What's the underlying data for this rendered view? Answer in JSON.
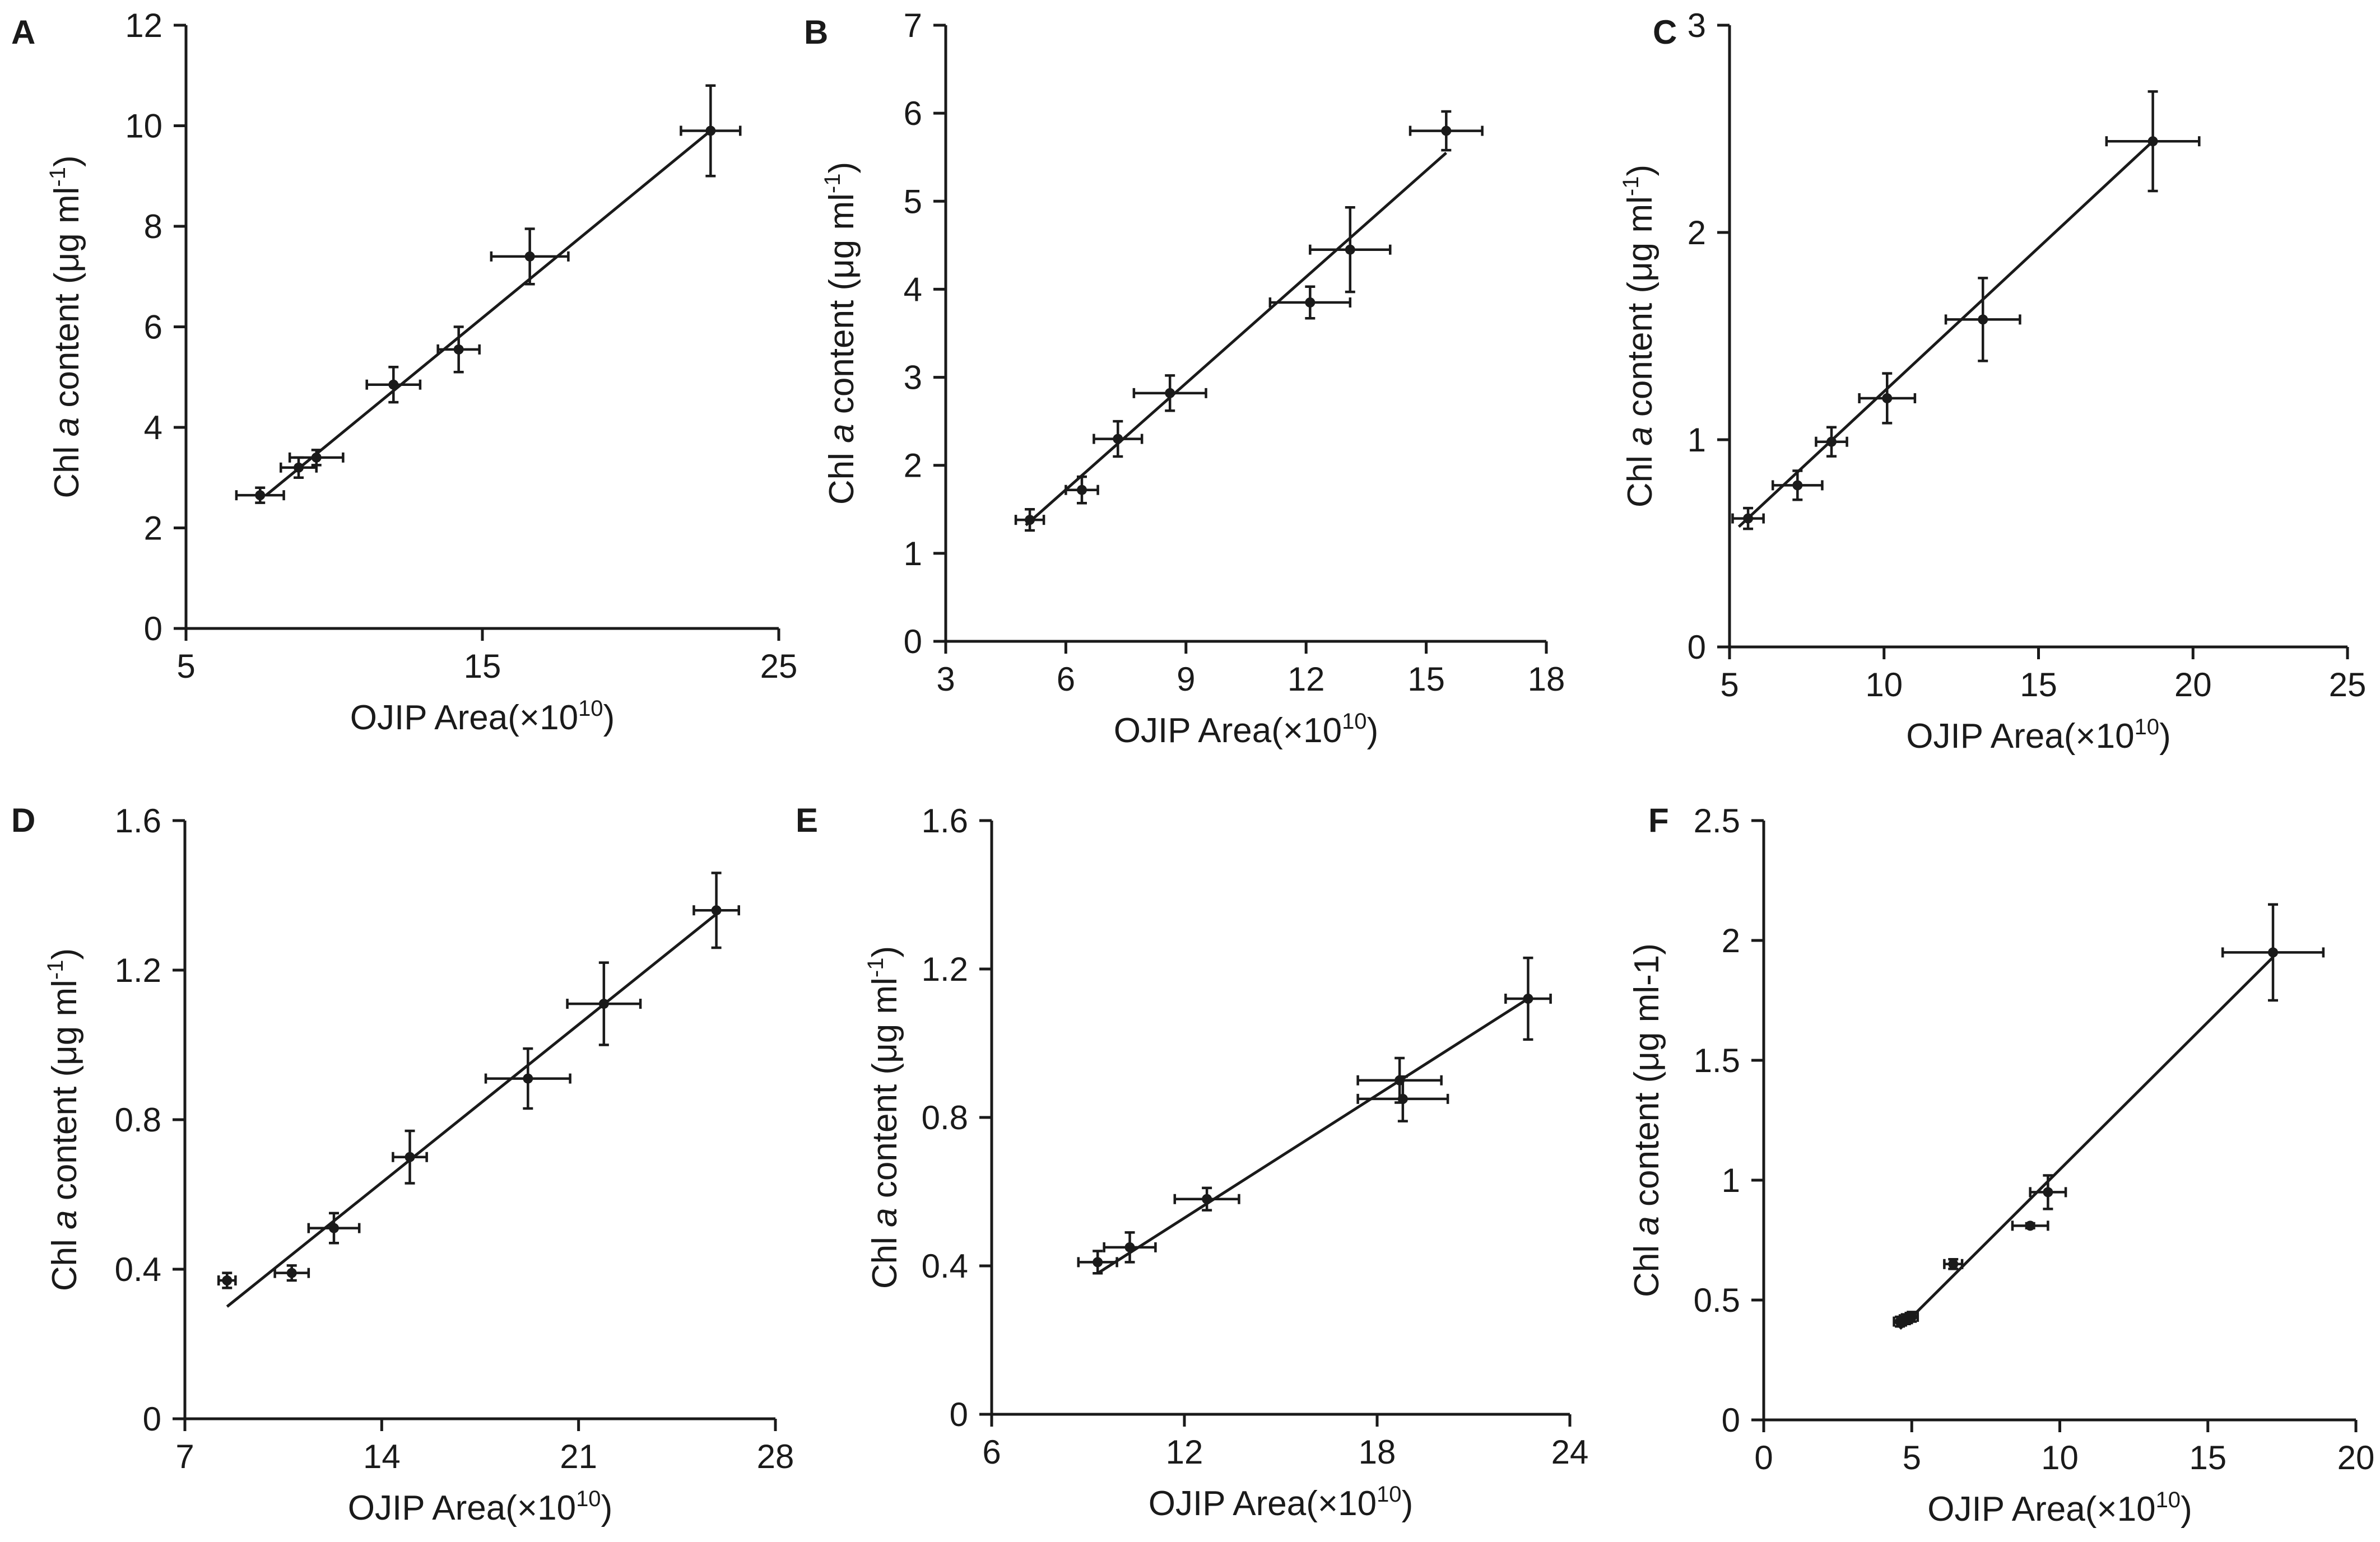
{
  "figure_label": "Chl a content vs OJIP Area, panels A–F",
  "chart_data": [
    {
      "panel": "A",
      "type": "scatter",
      "xlabel": "OJIP Area(×10",
      "xlabel_sup": "10",
      "xlabel_close": ")",
      "ylabel_pre": "Chl ",
      "ylabel_ital": "a",
      "ylabel_post": " content (μg ml",
      "ylabel_sup": "-1",
      "ylabel_close": ")",
      "xlim": [
        5,
        25
      ],
      "ylim": [
        0,
        12
      ],
      "xticks": [
        5,
        15,
        25
      ],
      "yticks": [
        0,
        2,
        4,
        6,
        8,
        10,
        12
      ],
      "points": [
        {
          "x": 7.5,
          "y": 2.65,
          "xerr": 0.8,
          "yerr": 0.15
        },
        {
          "x": 8.8,
          "y": 3.2,
          "xerr": 0.6,
          "yerr": 0.2
        },
        {
          "x": 9.4,
          "y": 3.4,
          "xerr": 0.9,
          "yerr": 0.15
        },
        {
          "x": 12.0,
          "y": 4.85,
          "xerr": 0.9,
          "yerr": 0.35
        },
        {
          "x": 14.2,
          "y": 5.55,
          "xerr": 0.7,
          "yerr": 0.45
        },
        {
          "x": 16.6,
          "y": 7.4,
          "xerr": 1.3,
          "yerr": 0.55
        },
        {
          "x": 22.7,
          "y": 9.9,
          "xerr": 1.0,
          "yerr": 0.9
        }
      ],
      "fit": [
        [
          7.7,
          2.65
        ],
        [
          22.7,
          9.9
        ]
      ]
    },
    {
      "panel": "B",
      "type": "scatter",
      "xlabel": "OJIP Area(×10",
      "xlabel_sup": "10",
      "xlabel_close": ")",
      "ylabel_pre": "Chl ",
      "ylabel_ital": "a",
      "ylabel_post": " content (μg ml",
      "ylabel_sup": "-1",
      "ylabel_close": ")",
      "xlim": [
        3,
        18
      ],
      "ylim": [
        0,
        7
      ],
      "xticks": [
        3,
        6,
        9,
        12,
        15,
        18
      ],
      "yticks": [
        0,
        1,
        2,
        3,
        4,
        5,
        6,
        7
      ],
      "points": [
        {
          "x": 5.1,
          "y": 1.38,
          "xerr": 0.35,
          "yerr": 0.12
        },
        {
          "x": 6.4,
          "y": 1.72,
          "xerr": 0.4,
          "yerr": 0.15
        },
        {
          "x": 7.3,
          "y": 2.3,
          "xerr": 0.6,
          "yerr": 0.2
        },
        {
          "x": 8.6,
          "y": 2.82,
          "xerr": 0.9,
          "yerr": 0.2
        },
        {
          "x": 12.1,
          "y": 3.85,
          "xerr": 1.0,
          "yerr": 0.18
        },
        {
          "x": 13.1,
          "y": 4.45,
          "xerr": 1.0,
          "yerr": 0.48
        },
        {
          "x": 15.5,
          "y": 5.8,
          "xerr": 0.9,
          "yerr": 0.22
        }
      ],
      "fit": [
        [
          5.0,
          1.32
        ],
        [
          15.5,
          5.55
        ]
      ]
    },
    {
      "panel": "C",
      "type": "scatter",
      "xlabel": "OJIP Area(×10",
      "xlabel_sup": "10",
      "xlabel_close": ")",
      "ylabel_pre": "Chl ",
      "ylabel_ital": "a",
      "ylabel_post": " content (μg ml",
      "ylabel_sup": "-1",
      "ylabel_close": ")",
      "xlim": [
        5,
        25
      ],
      "ylim": [
        0,
        3
      ],
      "xticks": [
        5,
        10,
        15,
        20,
        25
      ],
      "yticks": [
        0,
        1,
        2,
        3
      ],
      "points": [
        {
          "x": 5.6,
          "y": 0.62,
          "xerr": 0.5,
          "yerr": 0.05
        },
        {
          "x": 7.2,
          "y": 0.78,
          "xerr": 0.8,
          "yerr": 0.07
        },
        {
          "x": 8.3,
          "y": 0.99,
          "xerr": 0.5,
          "yerr": 0.07
        },
        {
          "x": 10.1,
          "y": 1.2,
          "xerr": 0.9,
          "yerr": 0.12
        },
        {
          "x": 13.2,
          "y": 1.58,
          "xerr": 1.2,
          "yerr": 0.2
        },
        {
          "x": 18.7,
          "y": 2.44,
          "xerr": 1.5,
          "yerr": 0.24
        }
      ],
      "fit": [
        [
          5.3,
          0.58
        ],
        [
          18.7,
          2.44
        ]
      ]
    },
    {
      "panel": "D",
      "type": "scatter",
      "xlabel": "OJIP Area(×10",
      "xlabel_sup": "10",
      "xlabel_close": ")",
      "ylabel_pre": "Chl ",
      "ylabel_ital": "a",
      "ylabel_post": " content (μg ml",
      "ylabel_sup": "-1",
      "ylabel_close": ")",
      "xlim": [
        7,
        28
      ],
      "ylim": [
        0,
        1.6
      ],
      "xticks": [
        7,
        14,
        21,
        28
      ],
      "yticks": [
        0,
        0.4,
        0.8,
        1.2,
        1.6
      ],
      "points": [
        {
          "x": 8.5,
          "y": 0.37,
          "xerr": 0.3,
          "yerr": 0.02
        },
        {
          "x": 10.8,
          "y": 0.39,
          "xerr": 0.6,
          "yerr": 0.02
        },
        {
          "x": 12.3,
          "y": 0.51,
          "xerr": 0.9,
          "yerr": 0.04
        },
        {
          "x": 15.0,
          "y": 0.7,
          "xerr": 0.6,
          "yerr": 0.07
        },
        {
          "x": 19.2,
          "y": 0.91,
          "xerr": 1.5,
          "yerr": 0.08
        },
        {
          "x": 21.9,
          "y": 1.11,
          "xerr": 1.3,
          "yerr": 0.11
        },
        {
          "x": 25.9,
          "y": 1.36,
          "xerr": 0.8,
          "yerr": 0.1
        }
      ],
      "fit": [
        [
          8.5,
          0.3
        ],
        [
          25.9,
          1.35
        ]
      ]
    },
    {
      "panel": "E",
      "type": "scatter",
      "xlabel": "OJIP Area(×10",
      "xlabel_sup": "10",
      "xlabel_close": ")",
      "ylabel_pre": "Chl ",
      "ylabel_ital": "a",
      "ylabel_post": " content (μg ml",
      "ylabel_sup": "-1",
      "ylabel_close": ")",
      "xlim": [
        6,
        24
      ],
      "ylim": [
        0,
        1.6
      ],
      "xticks": [
        6,
        12,
        18,
        24
      ],
      "yticks": [
        0,
        0.4,
        0.8,
        1.2,
        1.6
      ],
      "points": [
        {
          "x": 9.3,
          "y": 0.41,
          "xerr": 0.6,
          "yerr": 0.03
        },
        {
          "x": 10.3,
          "y": 0.45,
          "xerr": 0.8,
          "yerr": 0.04
        },
        {
          "x": 12.7,
          "y": 0.58,
          "xerr": 1.0,
          "yerr": 0.03
        },
        {
          "x": 18.7,
          "y": 0.9,
          "xerr": 1.3,
          "yerr": 0.06
        },
        {
          "x": 18.8,
          "y": 0.85,
          "xerr": 1.4,
          "yerr": 0.06
        },
        {
          "x": 22.7,
          "y": 1.12,
          "xerr": 0.7,
          "yerr": 0.11
        }
      ],
      "fit": [
        [
          9.3,
          0.38
        ],
        [
          22.7,
          1.12
        ]
      ]
    },
    {
      "panel": "F",
      "type": "scatter",
      "xlabel": "OJIP Area(×10",
      "xlabel_sup": "10",
      "xlabel_close": ")",
      "ylabel_pre": "Chl ",
      "ylabel_ital": "a",
      "ylabel_post": " content (μg ml-1)",
      "ylabel_sup": "",
      "ylabel_close": "",
      "xlim": [
        0,
        20
      ],
      "ylim": [
        0,
        2.5
      ],
      "xticks": [
        0,
        5,
        10,
        15,
        20
      ],
      "yticks": [
        0,
        0.5,
        1,
        1.5,
        2,
        2.5
      ],
      "points": [
        {
          "x": 4.6,
          "y": 0.41,
          "xerr": 0.2,
          "yerr": 0.02
        },
        {
          "x": 4.8,
          "y": 0.42,
          "xerr": 0.2,
          "yerr": 0.02
        },
        {
          "x": 5.0,
          "y": 0.43,
          "xerr": 0.2,
          "yerr": 0.02
        },
        {
          "x": 6.4,
          "y": 0.65,
          "xerr": 0.3,
          "yerr": 0.02
        },
        {
          "x": 9.0,
          "y": 0.81,
          "xerr": 0.6,
          "yerr": 0.01
        },
        {
          "x": 9.6,
          "y": 0.95,
          "xerr": 0.6,
          "yerr": 0.07
        },
        {
          "x": 17.2,
          "y": 1.95,
          "xerr": 1.7,
          "yerr": 0.2
        }
      ],
      "fit": [
        [
          4.6,
          0.38
        ],
        [
          17.2,
          1.93
        ]
      ]
    }
  ]
}
